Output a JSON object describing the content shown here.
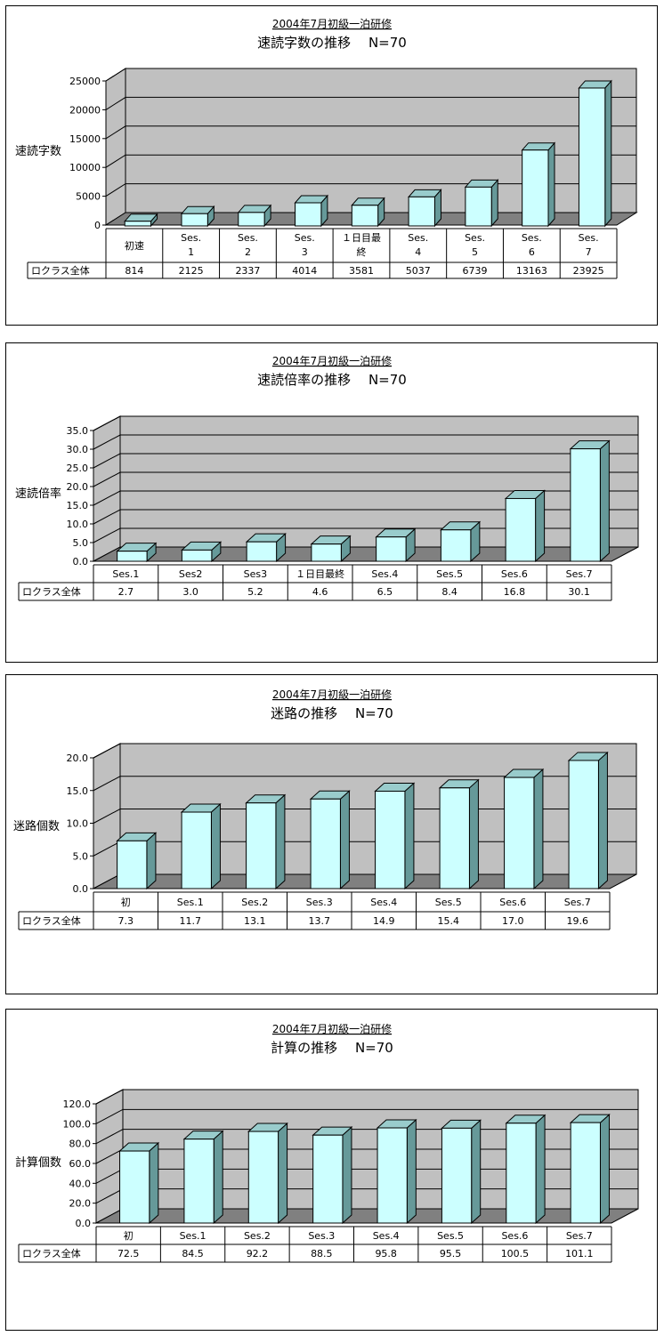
{
  "colors": {
    "wall": "#c0c0c0",
    "floor": "#808080",
    "bar_front": "#ccffff",
    "bar_side": "#669999",
    "bar_top": "#99cccc"
  },
  "chart_data": [
    {
      "type": "bar",
      "suptitle": "2004年7月初級一泊研修",
      "title": "速読字数の推移　 N=70",
      "ylabel": "速読字数",
      "categories": [
        "初速",
        "Ses.1",
        "Ses.2",
        "Ses.3",
        "１日目最終",
        "Ses.4",
        "Ses.5",
        "Ses.6",
        "Ses.7"
      ],
      "series": [
        {
          "name": "ロクラス全体",
          "values": [
            814,
            2125,
            2337,
            4014,
            3581,
            5037,
            6739,
            13163,
            23925
          ]
        }
      ],
      "value_labels": [
        "814",
        "2125",
        "2337",
        "4014",
        "3581",
        "5037",
        "6739",
        "13163",
        "23925"
      ],
      "ylim": [
        0,
        25000
      ],
      "yticks": [
        "0",
        "5000",
        "10000",
        "15000",
        "20000",
        "25000"
      ],
      "grid": true
    },
    {
      "type": "bar",
      "suptitle": "2004年7月初級一泊研修",
      "title": "速読倍率の推移　 N=70",
      "ylabel": "速読倍率",
      "categories": [
        "Ses.1",
        "Ses2",
        "Ses3",
        "１日目最終",
        "Ses.4",
        "Ses.5",
        "Ses.6",
        "Ses.7"
      ],
      "series": [
        {
          "name": "ロクラス全体",
          "values": [
            2.7,
            3.0,
            5.2,
            4.6,
            6.5,
            8.4,
            16.8,
            30.1
          ]
        }
      ],
      "value_labels": [
        "2.7",
        "3.0",
        "5.2",
        "4.6",
        "6.5",
        "8.4",
        "16.8",
        "30.1"
      ],
      "ylim": [
        0,
        35
      ],
      "yticks": [
        "0.0",
        "5.0",
        "10.0",
        "15.0",
        "20.0",
        "25.0",
        "30.0",
        "35.0"
      ],
      "grid": true
    },
    {
      "type": "bar",
      "suptitle": "2004年7月初級一泊研修",
      "title": "迷路の推移　 N=70",
      "ylabel": "迷路個数",
      "categories": [
        "初",
        "Ses.1",
        "Ses.2",
        "Ses.3",
        "Ses.4",
        "Ses.5",
        "Ses.6",
        "Ses.7"
      ],
      "series": [
        {
          "name": "ロクラス全体",
          "values": [
            7.3,
            11.7,
            13.1,
            13.7,
            14.9,
            15.4,
            17.0,
            19.6
          ]
        }
      ],
      "value_labels": [
        "7.3",
        "11.7",
        "13.1",
        "13.7",
        "14.9",
        "15.4",
        "17.0",
        "19.6"
      ],
      "ylim": [
        0,
        20
      ],
      "yticks": [
        "0.0",
        "5.0",
        "10.0",
        "15.0",
        "20.0"
      ],
      "grid": true
    },
    {
      "type": "bar",
      "suptitle": "2004年7月初級一泊研修",
      "title": "計算の推移　 N=70",
      "ylabel": "計算個数",
      "categories": [
        "初",
        "Ses.1",
        "Ses.2",
        "Ses.3",
        "Ses.4",
        "Ses.5",
        "Ses.6",
        "Ses.7"
      ],
      "series": [
        {
          "name": "ロクラス全体",
          "values": [
            72.5,
            84.5,
            92.2,
            88.5,
            95.8,
            95.5,
            100.5,
            101.1
          ]
        }
      ],
      "value_labels": [
        "72.5",
        "84.5",
        "92.2",
        "88.5",
        "95.8",
        "95.5",
        "100.5",
        "101.1"
      ],
      "ylim": [
        0,
        120
      ],
      "yticks": [
        "0.0",
        "20.0",
        "40.0",
        "60.0",
        "80.0",
        "100.0",
        "120.0"
      ],
      "grid": true
    }
  ]
}
